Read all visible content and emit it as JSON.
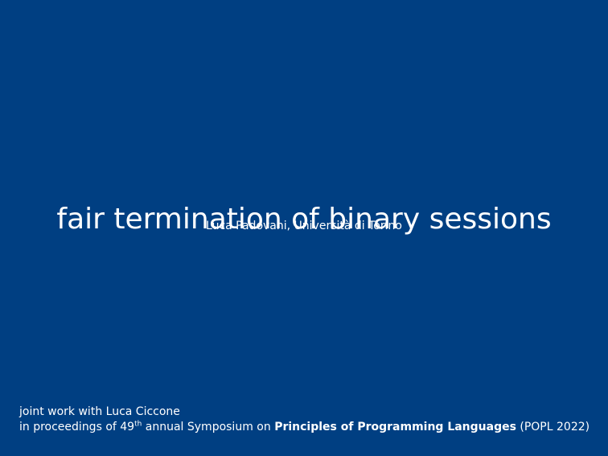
{
  "slide": {
    "title": "fair termination of binary sessions",
    "author_line": "Luca Padovani, Università di Torino",
    "footer": {
      "joint_work": "joint work with Luca Ciccone",
      "proceedings_prefix": "in proceedings of 49",
      "ordinal_suffix": "th",
      "proceedings_middle": " annual Symposium on ",
      "venue_name": "Principles of Programming Languages",
      "venue_suffix": " (POPL 2022)"
    }
  },
  "colors": {
    "background": "#003f82",
    "text": "#ffffff"
  }
}
